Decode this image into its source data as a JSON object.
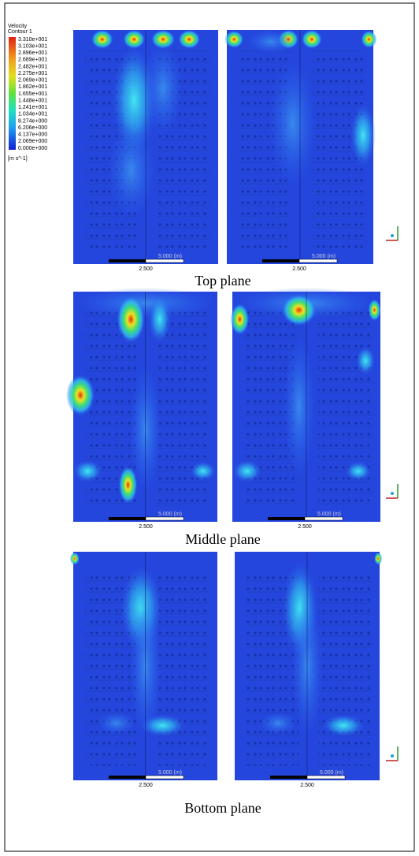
{
  "legend": {
    "title": "Velocity",
    "subtitle": "Contour 1",
    "labels": [
      "3.310e+001",
      "3.103e+001",
      "2.896e+001",
      "2.689e+001",
      "2.482e+001",
      "2.275e+001",
      "2.069e+001",
      "1.862e+001",
      "1.655e+001",
      "1.448e+001",
      "1.241e+001",
      "1.034e+001",
      "8.274e+000",
      "6.206e+000",
      "4.137e+000",
      "2.069e+000",
      "0.000e+000"
    ],
    "unit": "[m s^-1]"
  },
  "scale_bar": {
    "mid": "2.500",
    "end": "5.000 (m)"
  },
  "planes": [
    {
      "caption": "Top plane"
    },
    {
      "caption": "Middle plane"
    },
    {
      "caption": "Bottom plane"
    }
  ]
}
